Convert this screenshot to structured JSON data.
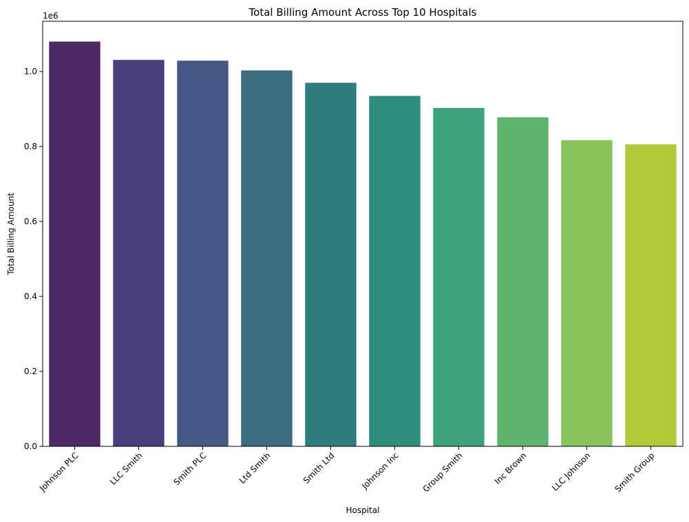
{
  "chart_data": {
    "type": "bar",
    "title": "Total Billing Amount Across Top 10 Hospitals",
    "xlabel": "Hospital",
    "ylabel": "Total Billing Amount",
    "y_offset_label": "1e6",
    "categories": [
      "Johnson PLC",
      "LLC Smith",
      "Smith PLC",
      "Ltd Smith",
      "Smith Ltd",
      "Johnson Inc",
      "Group Smith",
      "Inc Brown",
      "LLC Johnson",
      "Smith Group"
    ],
    "values": [
      1080000,
      1031000,
      1029000,
      1003000,
      970000,
      935000,
      903000,
      878000,
      817000,
      806000
    ],
    "colors": [
      "#4b2a66",
      "#483f7f",
      "#435984",
      "#3a6c80",
      "#2f7c7e",
      "#2e8c7c",
      "#3ba27a",
      "#5db56c",
      "#88c35a",
      "#b3c93a"
    ],
    "ylim": [
      0,
      1134000
    ],
    "yticks": [
      0,
      200000,
      400000,
      600000,
      800000,
      1000000
    ],
    "ytick_labels": [
      "0.0",
      "0.2",
      "0.4",
      "0.6",
      "0.8",
      "1.0"
    ],
    "x_tick_rotation_deg": 45,
    "grid": false,
    "legend": "none"
  }
}
